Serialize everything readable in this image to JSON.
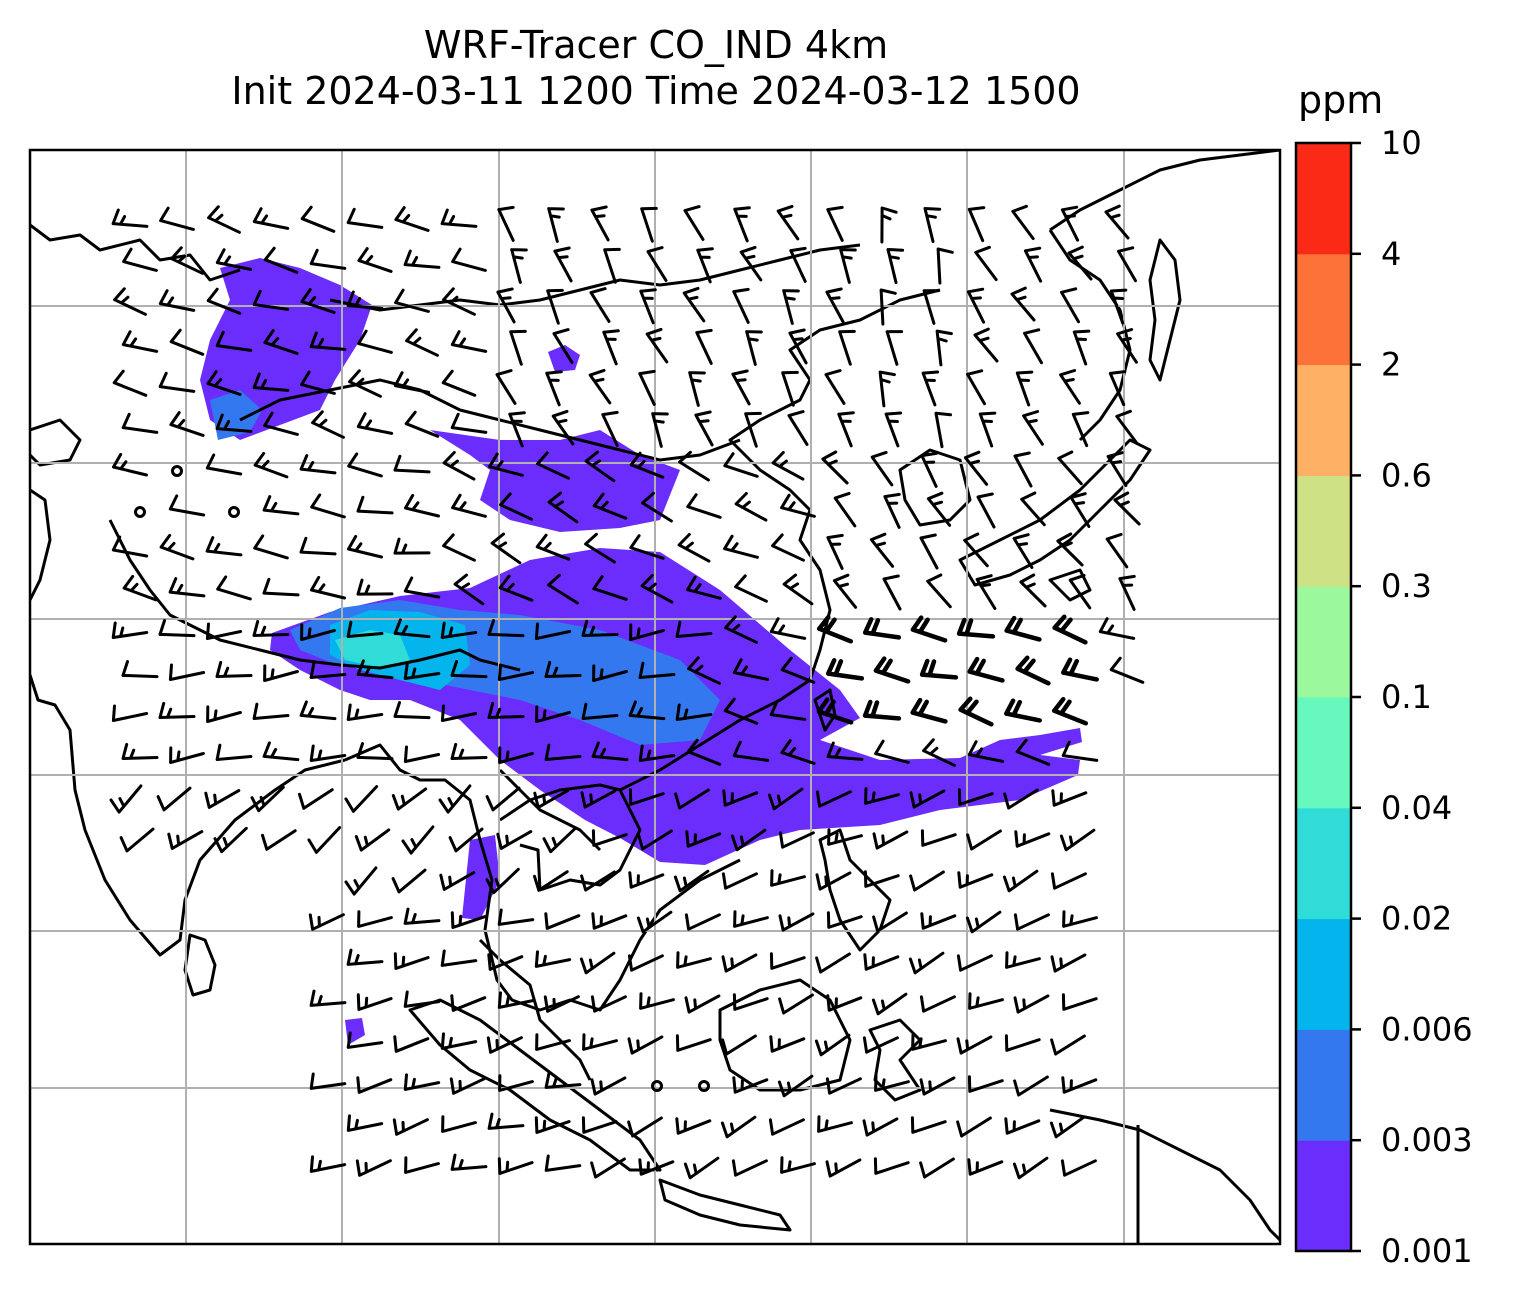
{
  "title": {
    "line1": "WRF-Tracer CO_IND 4km",
    "line2": "Init 2024-03-11 1200 Time 2024-03-12 1500"
  },
  "colorbar": {
    "unit": "ppm",
    "levels": [
      "0.001",
      "0.003",
      "0.006",
      "0.02",
      "0.04",
      "0.1",
      "0.3",
      "0.6",
      "2",
      "4",
      "10"
    ],
    "colors": [
      "#6a2dfb",
      "#3478f0",
      "#04b4ec",
      "#30dcd8",
      "#66f8bc",
      "#9cf89c",
      "#cee184",
      "#feb064",
      "#fd7238",
      "#fb2a16"
    ]
  },
  "map": {
    "grid": true,
    "background": "#ffffff",
    "coastline_color": "#000000",
    "barb_color": "#000000"
  }
}
